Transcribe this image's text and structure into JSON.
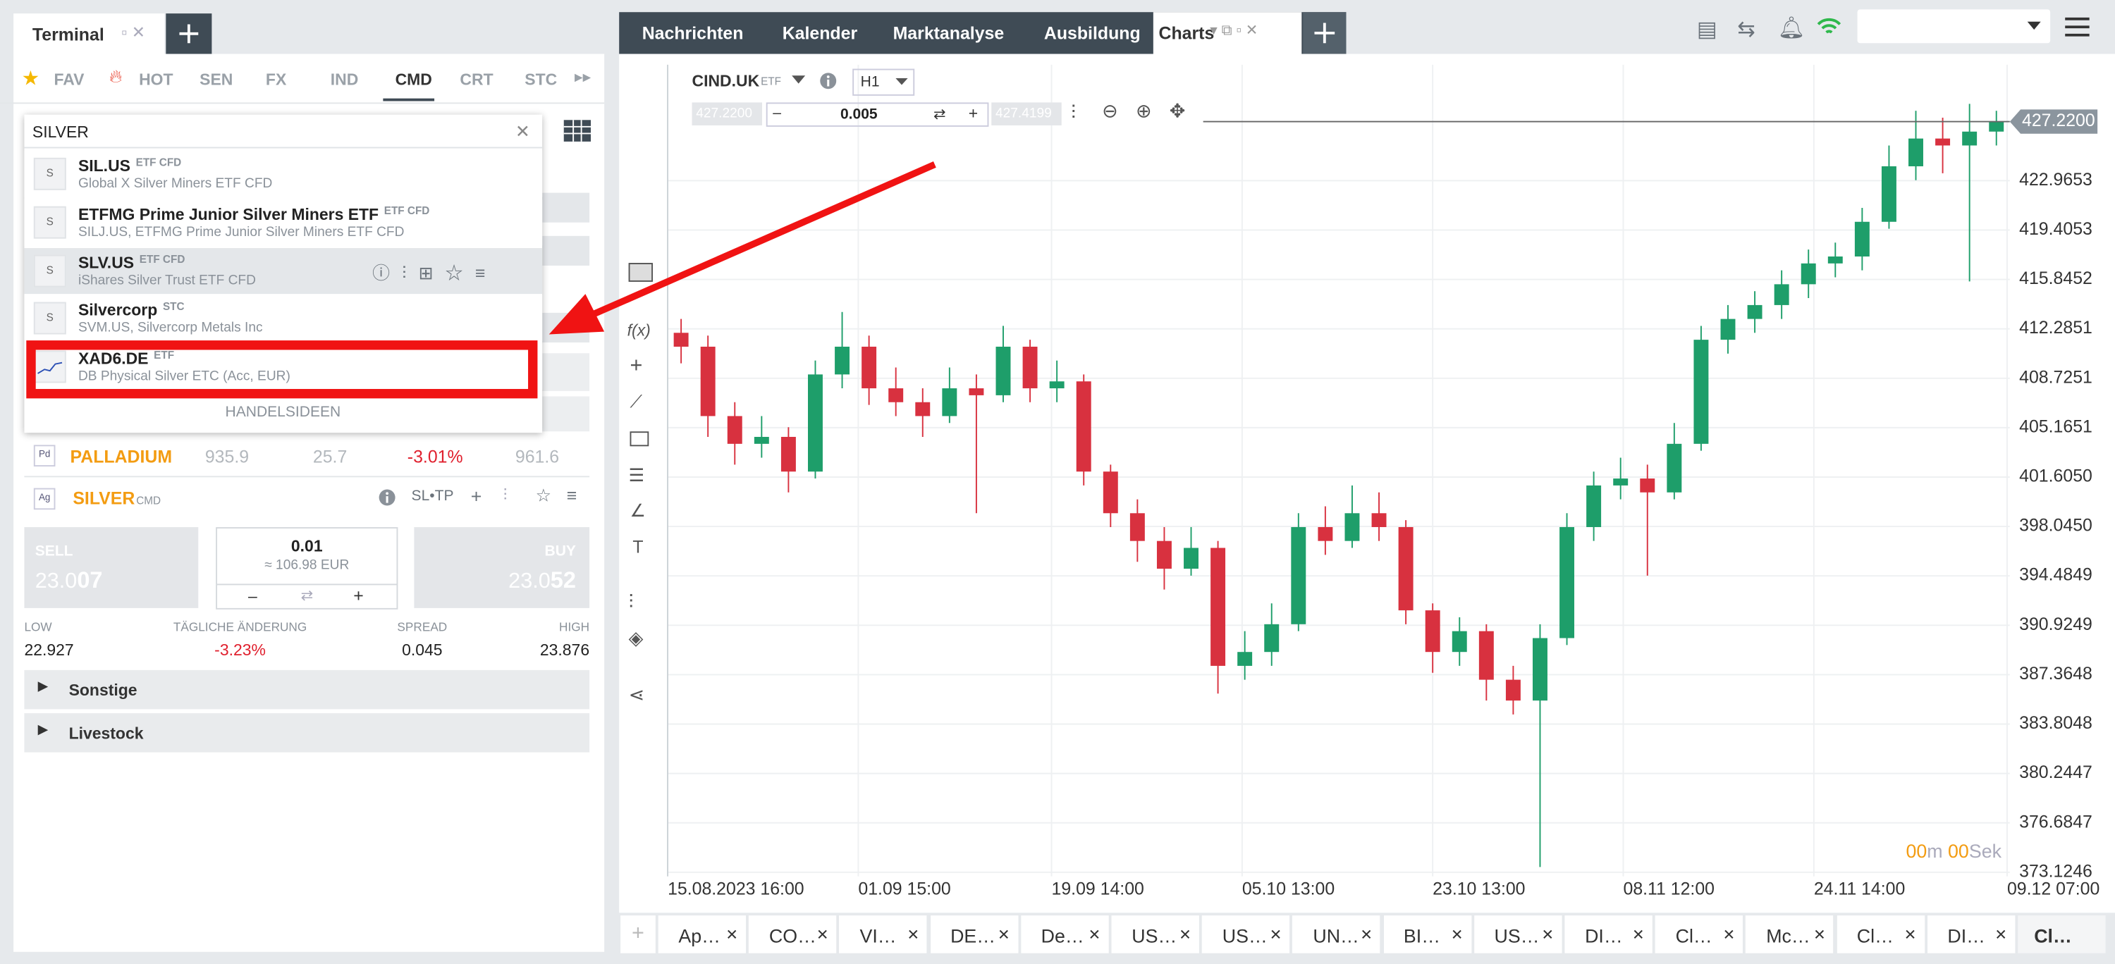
{
  "terminal": {
    "tab": "Terminal",
    "categories": [
      "FAV",
      "HOT",
      "SEN",
      "FX",
      "IND",
      "CMD",
      "CRT",
      "STC"
    ],
    "active_category_index": 5
  },
  "search": {
    "query": "SILVER",
    "results": [
      {
        "icon": "S",
        "name": "SIL.US",
        "tag": "ETF CFD",
        "subtitle": "Global X Silver Miners ETF CFD"
      },
      {
        "icon": "S",
        "name": "ETFMG Prime Junior Silver Miners ETF",
        "tag": "ETF CFD",
        "subtitle": "SILJ.US, ETFMG Prime Junior Silver Miners ETF CFD"
      },
      {
        "icon": "S",
        "name": "SLV.US",
        "tag": "ETF CFD",
        "subtitle": "iShares Silver Trust ETF CFD"
      },
      {
        "icon": "S",
        "name": "Silvercorp",
        "tag": "STC",
        "subtitle": "SVM.US, Silvercorp Metals Inc"
      },
      {
        "name": "XAD6.DE",
        "tag": "ETF",
        "subtitle": "DB Physical Silver ETC (Acc, EUR)"
      }
    ],
    "footer": "HANDELSIDEEN"
  },
  "palladium": {
    "icon": "Pd",
    "name": "PALLADIUM",
    "bid": "935.9",
    "change": "25.7",
    "change_pct": "-3.01%",
    "high": "961.6"
  },
  "instrument": {
    "icon": "Ag",
    "name": "SILVER",
    "tag": "CMD",
    "sltp": "SL•TP",
    "sell": {
      "label": "SELL",
      "price_main": "23.0",
      "price_big": "07"
    },
    "buy": {
      "label": "BUY",
      "price_main": "23.0",
      "price_big": "52"
    },
    "volume": "0.01",
    "volume_value": "≈ 106.98 EUR",
    "minus": "–",
    "plus": "+",
    "stats": [
      {
        "label": "LOW",
        "value": "22.927"
      },
      {
        "label": "TÄGLICHE ÄNDERUNG",
        "value": "-3.23%"
      },
      {
        "label": "SPREAD",
        "value": "0.045"
      },
      {
        "label": "HIGH",
        "value": "23.876"
      }
    ]
  },
  "sections": [
    "Sonstige",
    "Livestock"
  ],
  "nav": {
    "tabs": [
      "Nachrichten",
      "Kalender",
      "Marktanalyse",
      "Ausbildung",
      "Charts"
    ],
    "active_index": 4
  },
  "chart_toolbar": {
    "symbol": "CIND.UK",
    "tag": "ETF",
    "timeframe": "H1",
    "sell": "427.2200",
    "volume": "0.005",
    "buy": "427.4199",
    "minus": "–",
    "plus": "+"
  },
  "tools": [
    "f(x)",
    "T"
  ],
  "chart_data": {
    "type": "candlestick",
    "up_color": "#1e9e6a",
    "down_color": "#d8313f",
    "grid": true,
    "candles": [
      [
        412,
        413,
        409.8,
        411
      ],
      [
        411,
        411.8,
        404.5,
        406
      ],
      [
        406,
        407,
        402.5,
        404
      ],
      [
        404,
        406,
        403,
        404.5
      ],
      [
        404.5,
        405.2,
        400.5,
        402
      ],
      [
        402,
        410,
        401.5,
        409
      ],
      [
        409,
        413.5,
        408,
        411
      ],
      [
        411,
        411.8,
        406.8,
        408
      ],
      [
        408,
        409.5,
        406,
        407
      ],
      [
        407,
        408,
        404.5,
        406
      ],
      [
        406,
        409.5,
        405.5,
        408
      ],
      [
        408,
        409,
        399,
        407.5
      ],
      [
        407.5,
        412.5,
        407,
        411
      ],
      [
        411,
        411.5,
        407,
        408
      ],
      [
        408,
        410,
        407,
        408.5
      ],
      [
        408.5,
        409,
        401,
        402
      ],
      [
        402,
        402.5,
        398,
        399
      ],
      [
        399,
        400,
        395.5,
        397
      ],
      [
        397,
        398,
        393.5,
        395
      ],
      [
        395,
        398,
        394.5,
        396.5
      ],
      [
        396.5,
        397,
        386,
        388
      ],
      [
        388,
        390.5,
        387,
        389
      ],
      [
        389,
        392.5,
        388,
        391
      ],
      [
        391,
        399,
        390.5,
        398
      ],
      [
        398,
        399.5,
        396,
        397
      ],
      [
        397,
        401,
        396.5,
        399
      ],
      [
        399,
        400.5,
        397,
        398
      ],
      [
        398,
        398.5,
        391,
        392
      ],
      [
        392,
        392.5,
        387.5,
        389
      ],
      [
        389,
        391.5,
        388,
        390.5
      ],
      [
        390.5,
        391,
        385.5,
        387
      ],
      [
        387,
        388,
        384.5,
        385.5
      ],
      [
        385.5,
        391,
        373.5,
        390
      ],
      [
        390,
        399,
        389.5,
        398
      ],
      [
        398,
        402,
        397,
        401
      ],
      [
        401,
        403,
        400,
        401.5
      ],
      [
        401.5,
        402.5,
        394.5,
        400.5
      ],
      [
        400.5,
        405.5,
        400,
        404
      ],
      [
        404,
        412.5,
        403.5,
        411.5
      ],
      [
        411.5,
        414,
        410.5,
        413
      ],
      [
        413,
        415,
        412,
        414
      ],
      [
        414,
        416.5,
        413,
        415.5
      ],
      [
        415.5,
        418,
        414.5,
        417
      ],
      [
        417,
        418.5,
        416,
        417.5
      ],
      [
        417.5,
        421,
        416.5,
        420
      ],
      [
        420,
        425.5,
        419.5,
        424
      ],
      [
        424,
        428,
        423,
        426
      ],
      [
        426,
        427.5,
        423.5,
        425.5
      ],
      [
        425.5,
        428.5,
        415.7,
        426.5
      ],
      [
        426.5,
        428,
        425.5,
        427.22
      ]
    ],
    "xlim": [
      0,
      50
    ],
    "xticks": [
      {
        "value": 0,
        "label": "15.08.2023 16:00"
      },
      {
        "value": 7.1,
        "label": "01.09 15:00"
      },
      {
        "value": 14.3,
        "label": "19.09 14:00"
      },
      {
        "value": 21.4,
        "label": "05.10 13:00"
      },
      {
        "value": 28.5,
        "label": "23.10 13:00"
      },
      {
        "value": 35.6,
        "label": "08.11 12:00"
      },
      {
        "value": 42.7,
        "label": "24.11 14:00"
      },
      {
        "value": 49.9,
        "label": "09.12 07:00"
      }
    ],
    "ylim": [
      372.83,
      431.32
    ],
    "yticks": [
      422.9653,
      419.4053,
      415.8452,
      412.2851,
      408.7251,
      405.1651,
      {
        "value": 401.605,
        "label": "401.6050"
      },
      {
        "value": 398.045,
        "label": "398.0450"
      },
      394.4849,
      390.9249,
      387.3648,
      383.8048,
      380.2447,
      376.6847,
      373.1246
    ],
    "current_price": {
      "value": 427.22,
      "label": "427.2200"
    }
  },
  "timer": {
    "minutes": "00",
    "min_unit": "m",
    "seconds": "00",
    "sec_unit": "Sek"
  },
  "bottom_tabs": [
    "Ap…",
    "CO…",
    "VI…",
    "DE…",
    "De…",
    "US…",
    "US…",
    "UN…",
    "BI…",
    "US…",
    "DI…",
    "Cl…",
    "Mc…",
    "Cl…",
    "DI…",
    "Cl…"
  ],
  "bottom_active_index": 15
}
